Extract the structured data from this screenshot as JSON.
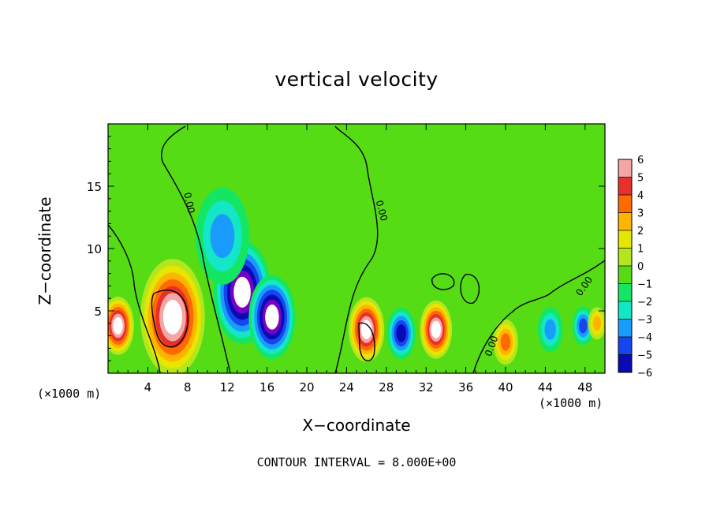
{
  "chart_data": {
    "type": "heatmap",
    "title": "vertical velocity",
    "xlabel": "X−coordinate",
    "ylabel": "Z−coordinate",
    "x_unit_label": "(×1000 m)",
    "x_unit_label_right": "(×1000 m)",
    "annotation": "CONTOUR INTERVAL = 8.000E+00",
    "xlim": [
      0,
      50
    ],
    "ylim": [
      0,
      20
    ],
    "xticks": [
      4,
      8,
      12,
      16,
      20,
      24,
      28,
      32,
      36,
      40,
      44,
      48
    ],
    "yticks": [
      5,
      10,
      15
    ],
    "colorbar": {
      "ticks": [
        "6",
        "5",
        "4",
        "3",
        "2",
        "1",
        "0",
        "−1",
        "−2",
        "−3",
        "−4",
        "−5",
        "−6"
      ],
      "colors": [
        "#f4a6a6",
        "#e8302a",
        "#ff6a00",
        "#ffb400",
        "#e6e600",
        "#b4e61e",
        "#55dc14",
        "#14e664",
        "#14e6c8",
        "#1a9cff",
        "#1446f0",
        "#0a0ab4",
        "#7a00c8"
      ],
      "range": [
        -6,
        6
      ]
    },
    "contour_labels": [
      "0.00",
      "0.00",
      "0.00",
      "0.00"
    ],
    "cells": [
      {
        "x": 1.0,
        "z": 3.8,
        "v": 9,
        "r": 1.8
      },
      {
        "x": 6.5,
        "z": 4.5,
        "v": 12,
        "r": 3.6
      },
      {
        "x": 13.5,
        "z": 6.5,
        "v": -7,
        "r": 3.2
      },
      {
        "x": 11.5,
        "z": 11.0,
        "v": -2.5,
        "r": 3.0
      },
      {
        "x": 16.5,
        "z": 4.5,
        "v": -9,
        "r": 2.6
      },
      {
        "x": 26.0,
        "z": 3.5,
        "v": 10,
        "r": 2.0
      },
      {
        "x": 29.5,
        "z": 3.2,
        "v": -5,
        "r": 1.6
      },
      {
        "x": 33.0,
        "z": 3.5,
        "v": 9,
        "r": 1.8
      },
      {
        "x": 40.0,
        "z": 2.5,
        "v": 4,
        "r": 1.4
      },
      {
        "x": 44.5,
        "z": 3.5,
        "v": -3,
        "r": 1.4
      },
      {
        "x": 47.8,
        "z": 3.8,
        "v": -4,
        "r": 1.2
      },
      {
        "x": 49.2,
        "z": 4.0,
        "v": 3,
        "r": 1.0
      }
    ]
  }
}
